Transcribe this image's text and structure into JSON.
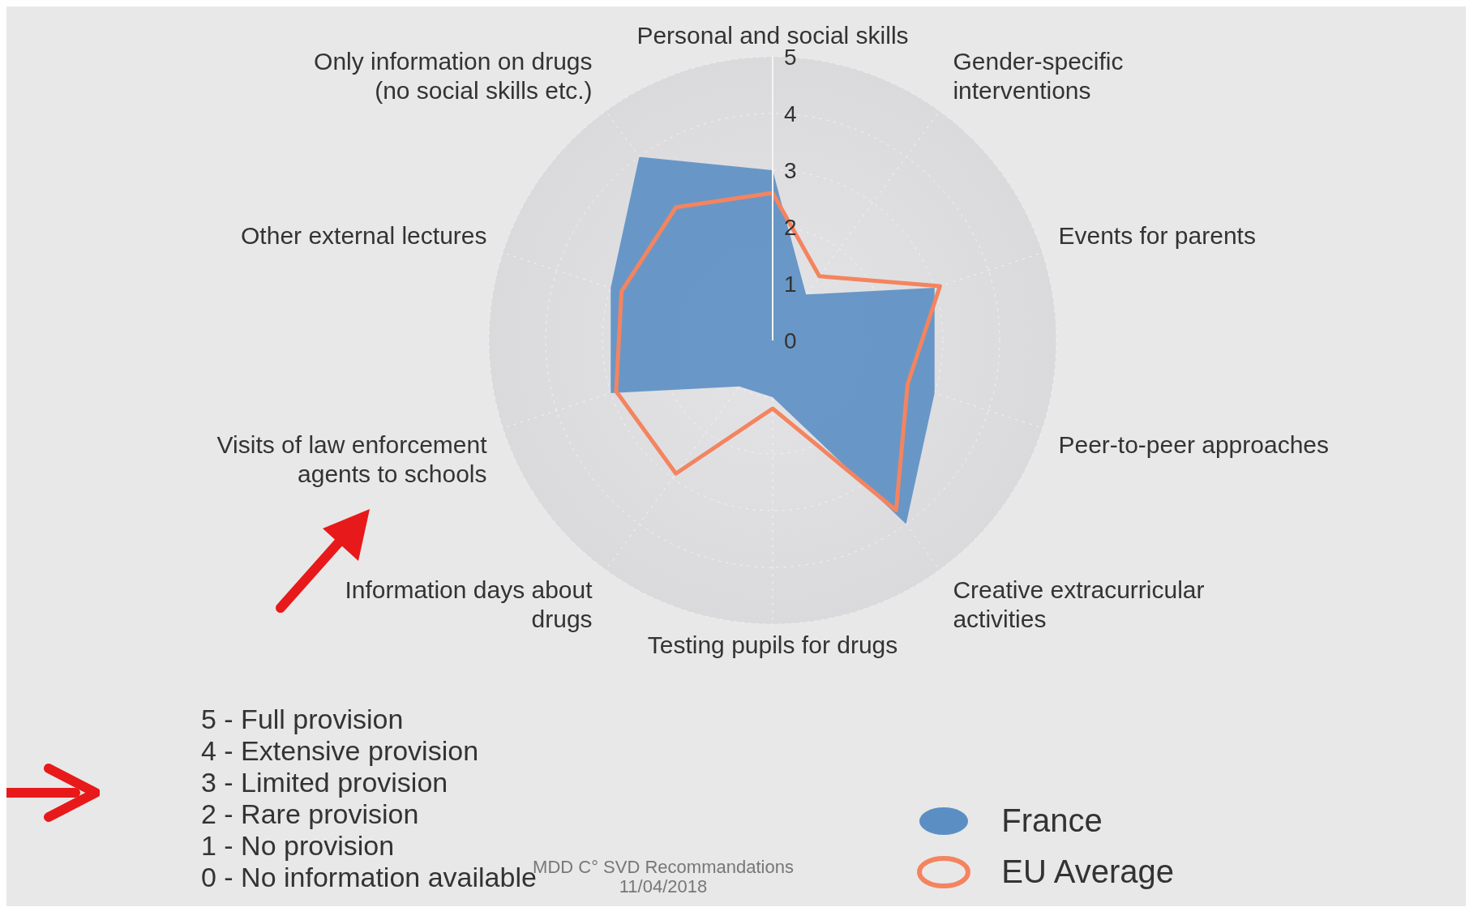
{
  "chart_data": {
    "type": "radar",
    "categories": [
      "Personal and social skills",
      "Gender-specific interventions",
      "Events for parents",
      "Peer-to-peer approaches",
      "Creative extracurricular activities",
      "Testing pupils for drugs",
      "Information days about drugs",
      "Visits of law enforcement agents to schools",
      "Other external lectures",
      "Only information on drugs (no social skills etc.)"
    ],
    "series": [
      {
        "name": "France",
        "color": "#5b8fc4",
        "values": [
          3,
          1,
          3,
          3,
          4,
          1,
          1,
          3,
          3,
          4
        ]
      },
      {
        "name": "EU Average",
        "line_style": "solid",
        "color": "#f4845f",
        "values": [
          2.6,
          1.4,
          3.1,
          2.5,
          3.7,
          1.2,
          2.9,
          2.9,
          2.8,
          2.9
        ]
      }
    ],
    "ylim": [
      0,
      5
    ],
    "yticks": [
      0,
      1,
      2,
      3,
      4,
      5
    ],
    "grid": true,
    "legend": "bottom right",
    "annotations": [
      "5 - Full provision",
      "4 - Extensive provision",
      "3 - Limited provision",
      "2 - Rare provision",
      "1 - No provision",
      "0 - No information available",
      "MDD C° SVD Recommandations",
      "11/04/2018"
    ]
  }
}
